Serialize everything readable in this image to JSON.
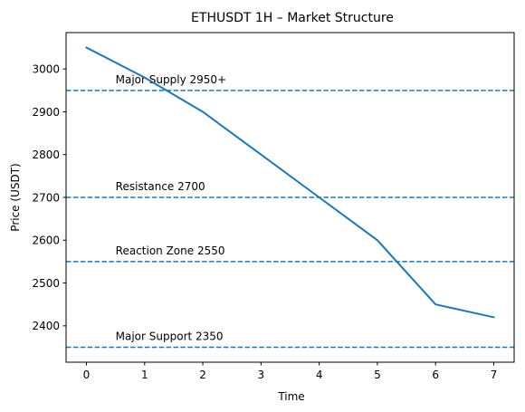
{
  "chart_data": {
    "type": "line",
    "title": "ETHUSDT 1H – Market Structure",
    "xlabel": "Time",
    "ylabel": "Price (USDT)",
    "xlim": [
      -0.35,
      7.35
    ],
    "ylim": [
      2315,
      3085
    ],
    "x_ticks": [
      0,
      1,
      2,
      3,
      4,
      5,
      6,
      7
    ],
    "y_ticks": [
      2400,
      2500,
      2600,
      2700,
      2800,
      2900,
      3000
    ],
    "grid": false,
    "series": [
      {
        "x": [
          0,
          1,
          2,
          3,
          4,
          5,
          6,
          7
        ],
        "values": [
          3050,
          2980,
          2900,
          2800,
          2700,
          2600,
          2450,
          2420
        ],
        "color": "#1f77b4"
      }
    ],
    "levels": [
      {
        "value": 2950,
        "label": "Major Supply 2950+",
        "color": "#1f77b4"
      },
      {
        "value": 2700,
        "label": "Resistance 2700",
        "color": "#1f77b4"
      },
      {
        "value": 2550,
        "label": "Reaction Zone 2550",
        "color": "#1f77b4"
      },
      {
        "value": 2350,
        "label": "Major Support 2350",
        "color": "#1f77b4"
      }
    ],
    "level_label_x": 0.5
  }
}
